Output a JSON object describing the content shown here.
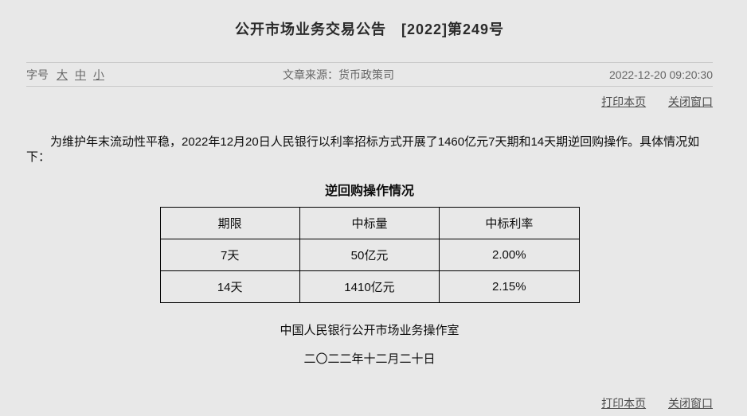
{
  "page": {
    "title": "公开市场业务交易公告　[2022]第249号"
  },
  "meta": {
    "font_size_label": "字号",
    "font_size_options": [
      "大",
      "中",
      "小"
    ],
    "source_label": "文章来源：",
    "source_value": "货币政策司",
    "timestamp": "2022-12-20 09:20:30"
  },
  "actions": {
    "print_label": "打印本页",
    "close_label": "关闭窗口"
  },
  "article": {
    "paragraph": "为维护年末流动性平稳，2022年12月20日人民银行以利率招标方式开展了1460亿元7天期和14天期逆回购操作。具体情况如下：",
    "table_title": "逆回购操作情况",
    "signature": "中国人民银行公开市场业务操作室",
    "date_line": "二〇二二年十二月二十日"
  },
  "table": {
    "headers": [
      "期限",
      "中标量",
      "中标利率"
    ],
    "rows": [
      [
        "7天",
        "50亿元",
        "2.00%"
      ],
      [
        "14天",
        "1410亿元",
        "2.15%"
      ]
    ]
  },
  "colors": {
    "background": "#e8e8e8",
    "separator": "#c9c9c9",
    "table_border": "#000000",
    "meta_text": "#666666",
    "link_text": "#4c4c4c",
    "body_text": "#0d0d0d"
  }
}
